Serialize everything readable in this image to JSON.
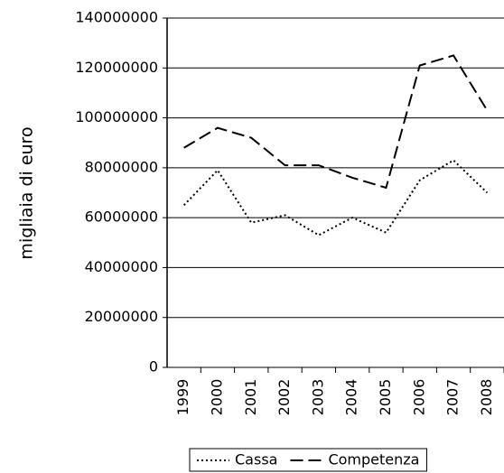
{
  "chart_data": {
    "type": "line",
    "y_label": "migliaia di euro",
    "categories": [
      "1999",
      "2000",
      "2001",
      "2002",
      "2003",
      "2004",
      "2005",
      "2006",
      "2007",
      "2008"
    ],
    "series": [
      {
        "name": "Cassa",
        "color": "#000000",
        "linestyle": "dotted",
        "values": [
          65000000,
          79000000,
          58000000,
          61000000,
          53000000,
          60000000,
          54000000,
          75000000,
          83000000,
          70000000
        ]
      },
      {
        "name": "Competenza",
        "color": "#000000",
        "linestyle": "dashed",
        "values": [
          88000000,
          96000000,
          92000000,
          81000000,
          81000000,
          76000000,
          72000000,
          121000000,
          125000000,
          103000000
        ]
      }
    ],
    "ylim": [
      0,
      140000000
    ],
    "yticks": [
      0,
      20000000,
      40000000,
      60000000,
      80000000,
      100000000,
      120000000,
      140000000
    ],
    "grid": true,
    "legend": "bottom"
  }
}
